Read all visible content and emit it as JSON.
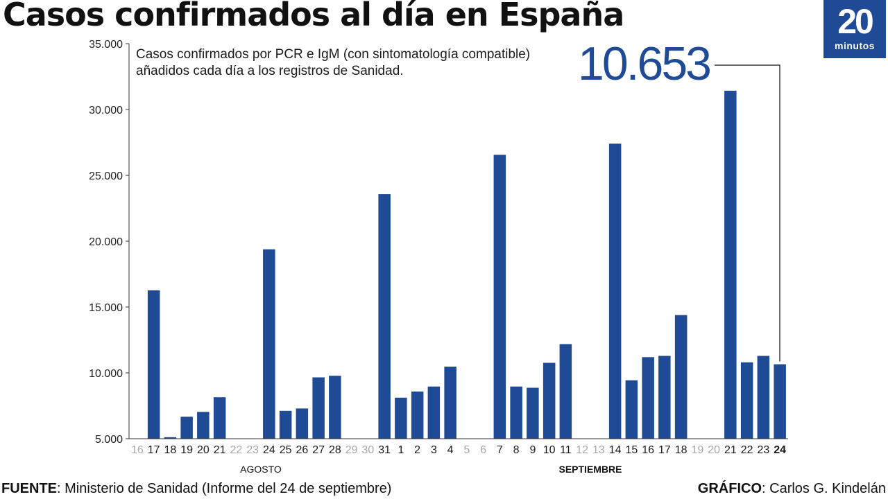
{
  "title": "Casos confirmados al día en España",
  "logo": {
    "number": "20",
    "word": "minutos"
  },
  "subtitle": "Casos confirmados por PCR e IgM (con sintomatología compatible) añadidos cada día a los registros de Sanidad.",
  "callout": "10.653",
  "footer": {
    "source_label": "FUENTE",
    "source_text": ": Ministerio de Sanidad (Informe del 24 de septiembre)",
    "graphic_label": "GRÁFICO",
    "graphic_text": ": Carlos G. Kindelán"
  },
  "colors": {
    "bar": "#1f4a96",
    "muted_tick": "#a8a8a8",
    "axis": "#333333"
  },
  "chart_data": {
    "type": "bar",
    "title": "Casos confirmados al día en España",
    "subtitle": "Casos confirmados por PCR e IgM (con sintomatología compatible) añadidos cada día a los registros de Sanidad.",
    "xlabel": "",
    "ylabel": "",
    "ylim": [
      5000,
      35000
    ],
    "yticks": [
      5000,
      10000,
      15000,
      20000,
      25000,
      30000,
      35000
    ],
    "ytick_labels": [
      "5.000",
      "10.000",
      "15.000",
      "20.000",
      "25.000",
      "30.000",
      "35.000"
    ],
    "grid": false,
    "months": [
      {
        "label": "AGOSTO",
        "from": "16",
        "to": "31"
      },
      {
        "label": "SEPTIEMBRE",
        "from": "1",
        "to": "24",
        "bold": true
      }
    ],
    "categories": [
      "16",
      "17",
      "18",
      "19",
      "20",
      "21",
      "22",
      "23",
      "24",
      "25",
      "26",
      "27",
      "28",
      "29",
      "30",
      "31",
      "1",
      "2",
      "3",
      "4",
      "5",
      "6",
      "7",
      "8",
      "9",
      "10",
      "11",
      "12",
      "13",
      "14",
      "15",
      "16",
      "17",
      "18",
      "19",
      "20",
      "21",
      "22",
      "23",
      "24"
    ],
    "values": [
      null,
      16269,
      5114,
      6671,
      7039,
      8148,
      null,
      null,
      19382,
      7117,
      7296,
      9658,
      9779,
      null,
      null,
      23572,
      8115,
      8584,
      8964,
      10476,
      null,
      null,
      26560,
      8964,
      8866,
      10764,
      12183,
      null,
      null,
      27404,
      9437,
      11193,
      11291,
      14389,
      null,
      null,
      31428,
      10799,
      11289,
      10653
    ],
    "weekend": [
      true,
      false,
      false,
      false,
      false,
      false,
      true,
      true,
      false,
      false,
      false,
      false,
      false,
      true,
      true,
      false,
      false,
      false,
      false,
      false,
      true,
      true,
      false,
      false,
      false,
      false,
      false,
      true,
      true,
      false,
      false,
      false,
      false,
      false,
      true,
      true,
      false,
      false,
      false,
      false
    ],
    "highlight": {
      "category": "24",
      "value": 10653,
      "label": "10.653"
    }
  }
}
